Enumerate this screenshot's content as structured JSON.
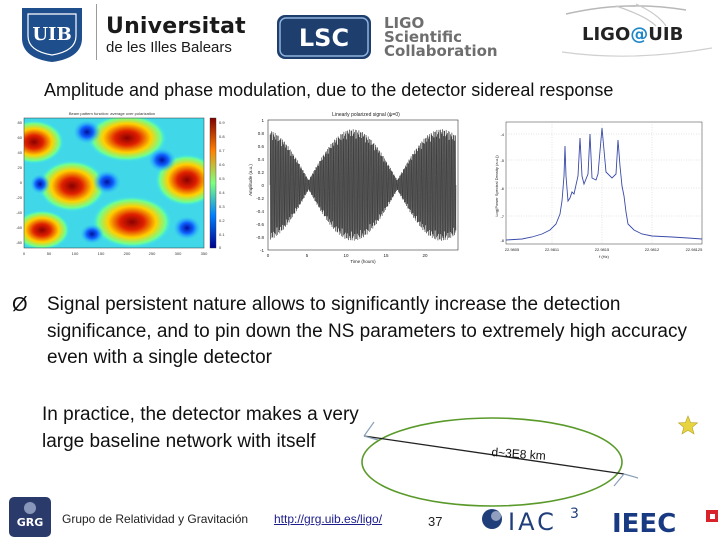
{
  "header": {
    "uib_logo_text": "UIB",
    "university_name": "Universitat",
    "university_sub": "de les Illes Balears",
    "lsc_logo_text": "LSC",
    "lsc_line1": "LIGO",
    "lsc_line2": "Scientific",
    "lsc_line3": "Collaboration",
    "ligo_uib_ligo": "LIGO",
    "ligo_uib_at": "@",
    "ligo_uib_uib": "UIB"
  },
  "title": "Amplitude and phase modulation, due to the detector sidereal response",
  "figures": {
    "antenna_map": {
      "title": "Beam pattern function: average over polarization",
      "y_ticks": [
        "80",
        "60",
        "40",
        "20",
        "0",
        "-20",
        "-40",
        "-60",
        "-80"
      ],
      "x_ticks": [
        "0",
        "50",
        "100",
        "150",
        "200",
        "250",
        "300",
        "350"
      ],
      "colorbar_ticks": [
        "0.9",
        "0.8",
        "0.7",
        "0.6",
        "0.5",
        "0.4",
        "0.3",
        "0.2",
        "0.1",
        "0"
      ]
    },
    "signal": {
      "title": "Linearly polarized signal (ψ=0)",
      "ylabel": "Amplitude (a.u.)",
      "xlabel": "Time (hours)",
      "y_ticks": [
        "1",
        "0.8",
        "0.6",
        "0.4",
        "0.2",
        "0",
        "-0.2",
        "-0.4",
        "-0.6",
        "-0.8",
        "-1"
      ],
      "x_ticks": [
        "0",
        "5",
        "10",
        "15",
        "20"
      ]
    },
    "spectrum": {
      "ylabel": "Log(Power Spectral Density (a.u.))",
      "xlabel": "f (Hz)",
      "y_ticks": [
        "-4",
        "-5",
        "-6",
        "-7",
        "-8"
      ],
      "x_ticks": [
        "22.9805",
        "22.9811",
        "22.9815",
        "22.9812",
        "22.98125"
      ]
    }
  },
  "bullet": {
    "marker": "Ø",
    "text": "Signal persistent nature allows to significantly increase the detection significance, and to pin down the NS parameters to extremely high accuracy even with a single detector"
  },
  "practice_text": "In practice, the detector makes a very large baseline network with itself",
  "orbit_label": "d~3E8 km",
  "footer": {
    "grg_logo_text": "GRG",
    "group_name": "Grupo de Relatividad y Gravitación",
    "url": "http://grg.uib.es/ligo/",
    "page_number": "37",
    "iac_text": "IAC",
    "iac_sup": "3",
    "ieec_text": "IEEC"
  },
  "colors": {
    "uib_blue": "#1f4e8c",
    "lsc_blue": "#2a5c9a",
    "spectrum_line": "#3a4aa8",
    "ieec_blue": "#173a82",
    "ieec_red": "#d8232a",
    "orbit_green": "#5a9a2a",
    "star_yellow": "#e8d440"
  }
}
